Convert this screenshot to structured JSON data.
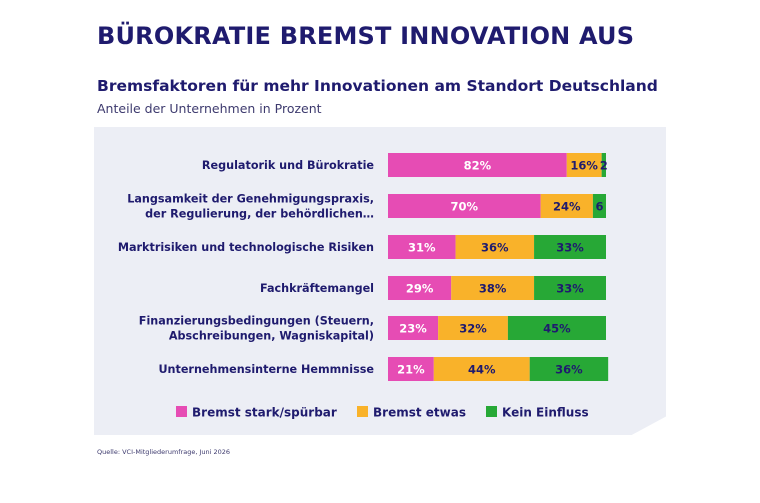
{
  "headline": "BÜROKRATIE BREMST INNOVATION AUS",
  "title": "Bremsfaktoren für mehr Innovationen am Standort Deutschland",
  "subtitle": "Anteile der Unternehmen in Prozent",
  "source": "Quelle: VCI-Mitgliederumfrage, Juni 2026",
  "colors": {
    "stark": "#e64cb4",
    "etwas": "#f9b22a",
    "kein": "#27a836",
    "navy": "#1f1b6e",
    "panel": "#eceef5"
  },
  "chart_data": {
    "type": "bar",
    "orientation": "horizontal",
    "stacked": true,
    "title": "Bremsfaktoren für mehr Innovationen am Standort Deutschland",
    "subtitle": "Anteile der Unternehmen in Prozent",
    "categories": [
      [
        "Regulatorik und Bürokratie"
      ],
      [
        "Langsamkeit der Genehmigungspraxis,",
        "der Regulierung, der behördlichen…"
      ],
      [
        "Marktrisiken und technologische Risiken"
      ],
      [
        "Fachkräftemangel"
      ],
      [
        "Finanzierungsbedingungen (Steuern,",
        "Abschreibungen, Wagniskapital)"
      ],
      [
        "Unternehmensinterne Hemmnisse"
      ]
    ],
    "series": [
      {
        "name": "Bremst stark/spürbar",
        "color": "#e64cb4",
        "values": [
          82,
          70,
          31,
          29,
          23,
          21
        ],
        "labels": [
          "82%",
          "70%",
          "31%",
          "29%",
          "23%",
          "21%"
        ],
        "label_color": "#ffffff"
      },
      {
        "name": "Bremst etwas",
        "color": "#f9b22a",
        "values": [
          16,
          24,
          36,
          38,
          32,
          44
        ],
        "labels": [
          "16%",
          "24%",
          "36%",
          "38%",
          "32%",
          "44%"
        ],
        "label_color": "#1f1b6e"
      },
      {
        "name": "Kein Einfluss",
        "color": "#27a836",
        "values": [
          2,
          6,
          33,
          33,
          45,
          36
        ],
        "labels": [
          "2",
          "6",
          "33%",
          "33%",
          "45%",
          "36%"
        ],
        "label_color": "#1f1b6e"
      }
    ],
    "xlim": [
      0,
      100
    ],
    "legend": "bottom"
  }
}
